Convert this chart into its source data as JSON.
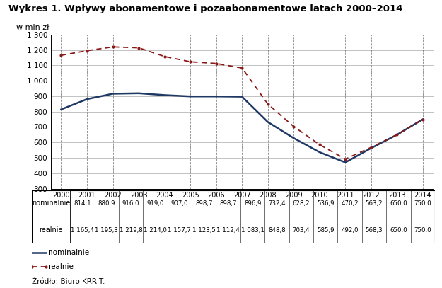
{
  "title": "Wykres 1. Wpływy abonamentowe i pozaabonamentowe latach 2000–2014",
  "ylabel": "w mln zł",
  "source": "Źródło: Biuro KRRiT.",
  "years": [
    2000,
    2001,
    2002,
    2003,
    2004,
    2005,
    2006,
    2007,
    2008,
    2009,
    2010,
    2011,
    2012,
    2013,
    2014
  ],
  "nominalne": [
    814.1,
    880.9,
    916.0,
    919.0,
    907.0,
    898.7,
    898.7,
    896.9,
    732.4,
    628.2,
    536.9,
    470.2,
    563.2,
    650.0,
    750.0
  ],
  "realnie": [
    1165.4,
    1195.3,
    1219.8,
    1214.0,
    1157.7,
    1123.5,
    1112.4,
    1083.1,
    848.8,
    703.4,
    585.9,
    492.0,
    568.3,
    650.0,
    750.0
  ],
  "nominalne_color": "#1f3864",
  "realnie_color": "#8b1a1a",
  "ylim_min": 300,
  "ylim_max": 1300,
  "yticks": [
    300,
    400,
    500,
    600,
    700,
    800,
    900,
    1000,
    1100,
    1200,
    1300
  ],
  "table_row1_label": "nominalnie",
  "table_row2_label": "realnie",
  "table_row1_values": [
    "814,1",
    "880,9",
    "916,0",
    "919,0",
    "907,0",
    "898,7",
    "898,7",
    "896,9",
    "732,4",
    "628,2",
    "536,9",
    "470,2",
    "563,2",
    "650,0",
    "750,0"
  ],
  "table_row2_values": [
    "1 165,4",
    "1 195,3",
    "1 219,8",
    "1 214,0",
    "1 157,7",
    "1 123,5",
    "1 112,4",
    "1 083,1",
    "848,8",
    "703,4",
    "585,9",
    "492,0",
    "568,3",
    "650,0",
    "750,0"
  ],
  "legend_label1": "nominalnie",
  "legend_label2": "realnie"
}
